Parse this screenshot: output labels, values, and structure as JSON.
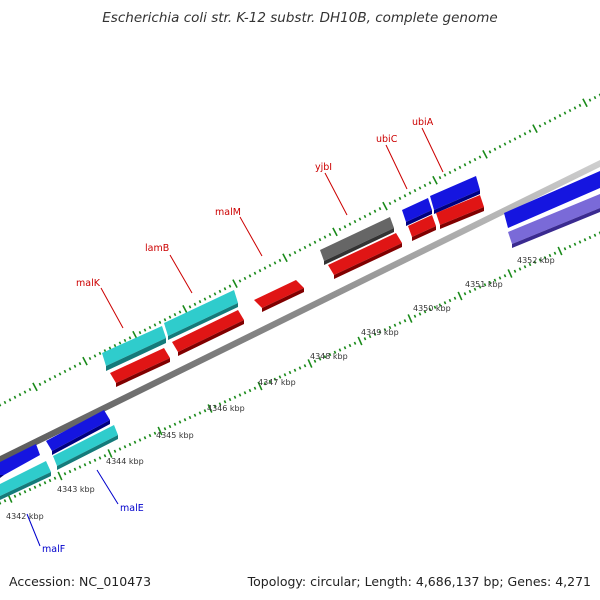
{
  "header": {
    "title": "Escherichia coli str. K-12 substr. DH10B, complete genome"
  },
  "footer": {
    "accession": "Accession: NC_010473",
    "summary": "Topology: circular; Length: 4,686,137 bp; Genes: 4,271"
  },
  "colors": {
    "backbone": "#8a8a8a",
    "tick": "#1a8a1a",
    "forward_cds": "#1515e0",
    "reverse_cds": "#e01515",
    "other_cds": "#2fcccc",
    "rna": "#666666",
    "highlight": "#7a6ad8",
    "label_red": "#cc0000",
    "label_blue": "#0000cc"
  },
  "scale": {
    "unit": "kbp",
    "ticks": [
      {
        "kbp": 4342,
        "label": "4342 kbp"
      },
      {
        "kbp": 4343,
        "label": "4343 kbp"
      },
      {
        "kbp": 4344,
        "label": "4344 kbp"
      },
      {
        "kbp": 4345,
        "label": "4345 kbp"
      },
      {
        "kbp": 4346,
        "label": "4346 kbp"
      },
      {
        "kbp": 4347,
        "label": "4347 kbp"
      },
      {
        "kbp": 4348,
        "label": "4348 kbp"
      },
      {
        "kbp": 4349,
        "label": "4349 kbp"
      },
      {
        "kbp": 4350,
        "label": "4350 kbp"
      },
      {
        "kbp": 4351,
        "label": "4351 kbp"
      },
      {
        "kbp": 4352,
        "label": "4352 kbp"
      }
    ]
  },
  "genes": [
    {
      "name": "malF",
      "label_color": "label_blue"
    },
    {
      "name": "malE",
      "label_color": "label_blue"
    },
    {
      "name": "malK",
      "label_color": "label_red"
    },
    {
      "name": "lamB",
      "label_color": "label_red"
    },
    {
      "name": "malM",
      "label_color": "label_red"
    },
    {
      "name": "yjbI",
      "label_color": "label_red"
    },
    {
      "name": "ubiC",
      "label_color": "label_red"
    },
    {
      "name": "ubiA",
      "label_color": "label_red"
    }
  ]
}
